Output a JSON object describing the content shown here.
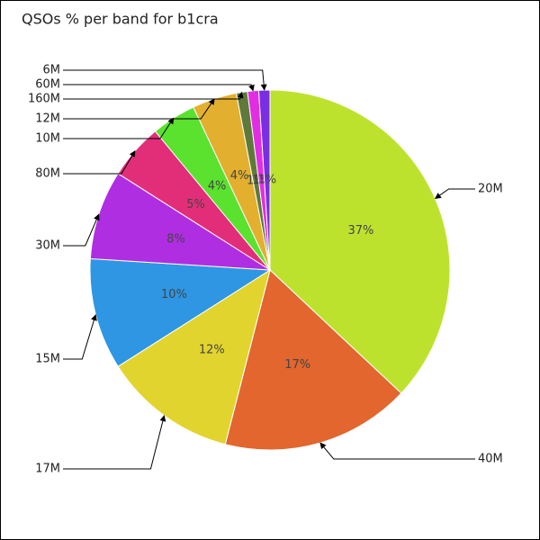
{
  "chart_data": {
    "type": "pie",
    "title": "QSOs % per band for b1cra",
    "categories": [
      "20M",
      "40M",
      "17M",
      "15M",
      "30M",
      "80M",
      "10M",
      "12M",
      "160M",
      "60M",
      "6M"
    ],
    "values": [
      37,
      17,
      12,
      10,
      8,
      5,
      4,
      4,
      1,
      1,
      1
    ],
    "value_labels": [
      "37%",
      "17%",
      "12%",
      "10%",
      "8%",
      "5%",
      "4%",
      "4%",
      "1%",
      "1%",
      "1%"
    ],
    "colors": [
      "#bde22e",
      "#e2662e",
      "#e2d42e",
      "#2e96e2",
      "#b02ee2",
      "#e22e79",
      "#5ae22e",
      "#e2b02e",
      "#5e7a3a",
      "#e22ee2",
      "#7a2ee2"
    ]
  }
}
